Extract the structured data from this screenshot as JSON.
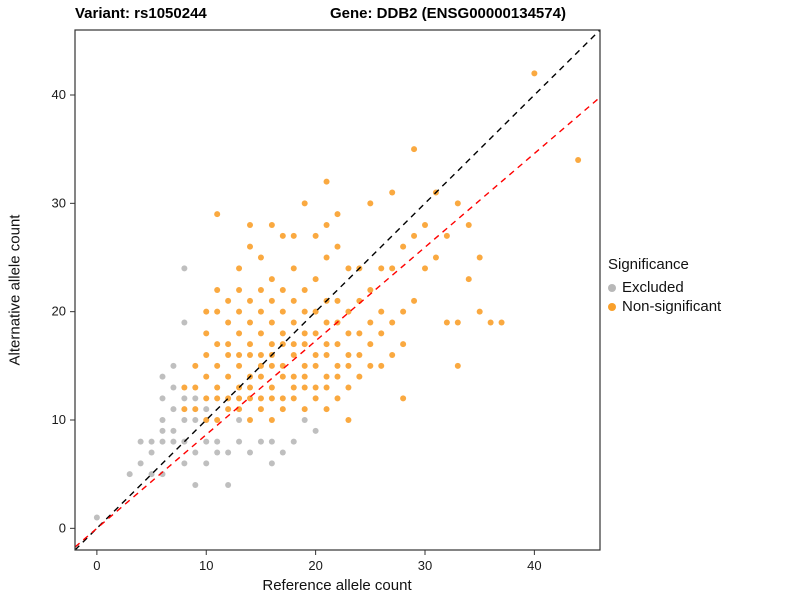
{
  "header": {
    "variant_title": "Variant: rs1050244",
    "gene_title": "Gene: DDB2 (ENSG00000134574)"
  },
  "legend": {
    "title": "Significance",
    "items": [
      {
        "label": "Excluded",
        "color": "#B8B8B8"
      },
      {
        "label": "Non-significant",
        "color": "#F9A02B"
      }
    ]
  },
  "colors": {
    "excluded": "#B8B8B8",
    "non_significant": "#F9A02B",
    "identity_line": "#000000",
    "fitted_line": "#FF0000",
    "panel_border": "#333333"
  },
  "chart_data": {
    "type": "scatter",
    "title": "Variant: rs1050244  Gene: DDB2 (ENSG00000134574)",
    "xlabel": "Reference allele count",
    "ylabel": "Alternative allele count",
    "xlim": [
      -2,
      46
    ],
    "ylim": [
      -2,
      46
    ],
    "x_ticks": [
      0,
      10,
      20,
      30,
      40
    ],
    "y_ticks": [
      0,
      10,
      20,
      30,
      40
    ],
    "grid": false,
    "legend_position": "right",
    "lines": [
      {
        "name": "identity",
        "slope": 1.0,
        "intercept": 0,
        "color": "#000000",
        "dashed": true
      },
      {
        "name": "fitted",
        "slope": 0.865,
        "intercept": 0,
        "color": "#FF0000",
        "dashed": true
      }
    ],
    "series": [
      {
        "name": "Excluded",
        "color": "#B8B8B8",
        "points": [
          [
            0,
            1
          ],
          [
            3,
            5
          ],
          [
            4,
            6
          ],
          [
            4,
            8
          ],
          [
            5,
            5
          ],
          [
            5,
            7
          ],
          [
            5,
            8
          ],
          [
            6,
            5
          ],
          [
            6,
            8
          ],
          [
            6,
            9
          ],
          [
            6,
            10
          ],
          [
            6,
            12
          ],
          [
            6,
            14
          ],
          [
            7,
            8
          ],
          [
            7,
            9
          ],
          [
            7,
            11
          ],
          [
            7,
            13
          ],
          [
            7,
            15
          ],
          [
            8,
            6
          ],
          [
            8,
            8
          ],
          [
            8,
            10
          ],
          [
            8,
            12
          ],
          [
            8,
            19
          ],
          [
            8,
            24
          ],
          [
            9,
            4
          ],
          [
            9,
            7
          ],
          [
            9,
            10
          ],
          [
            9,
            12
          ],
          [
            10,
            6
          ],
          [
            10,
            8
          ],
          [
            10,
            11
          ],
          [
            11,
            7
          ],
          [
            11,
            8
          ],
          [
            12,
            4
          ],
          [
            12,
            7
          ],
          [
            13,
            8
          ],
          [
            13,
            10
          ],
          [
            14,
            7
          ],
          [
            15,
            8
          ],
          [
            16,
            6
          ],
          [
            16,
            8
          ],
          [
            17,
            7
          ],
          [
            18,
            8
          ],
          [
            19,
            10
          ],
          [
            20,
            9
          ]
        ]
      },
      {
        "name": "Non-significant",
        "color": "#F9A02B",
        "points": [
          [
            8,
            11
          ],
          [
            8,
            13
          ],
          [
            9,
            11
          ],
          [
            9,
            13
          ],
          [
            9,
            15
          ],
          [
            10,
            10
          ],
          [
            10,
            12
          ],
          [
            10,
            14
          ],
          [
            10,
            16
          ],
          [
            10,
            18
          ],
          [
            10,
            20
          ],
          [
            11,
            10
          ],
          [
            11,
            12
          ],
          [
            11,
            13
          ],
          [
            11,
            15
          ],
          [
            11,
            17
          ],
          [
            11,
            20
          ],
          [
            11,
            22
          ],
          [
            11,
            29
          ],
          [
            12,
            11
          ],
          [
            12,
            12
          ],
          [
            12,
            14
          ],
          [
            12,
            16
          ],
          [
            12,
            17
          ],
          [
            12,
            19
          ],
          [
            12,
            21
          ],
          [
            13,
            11
          ],
          [
            13,
            12
          ],
          [
            13,
            13
          ],
          [
            13,
            15
          ],
          [
            13,
            16
          ],
          [
            13,
            18
          ],
          [
            13,
            20
          ],
          [
            13,
            22
          ],
          [
            13,
            24
          ],
          [
            14,
            10
          ],
          [
            14,
            12
          ],
          [
            14,
            13
          ],
          [
            14,
            14
          ],
          [
            14,
            16
          ],
          [
            14,
            17
          ],
          [
            14,
            19
          ],
          [
            14,
            21
          ],
          [
            14,
            26
          ],
          [
            14,
            28
          ],
          [
            15,
            11
          ],
          [
            15,
            12
          ],
          [
            15,
            14
          ],
          [
            15,
            15
          ],
          [
            15,
            16
          ],
          [
            15,
            18
          ],
          [
            15,
            20
          ],
          [
            15,
            22
          ],
          [
            15,
            25
          ],
          [
            16,
            10
          ],
          [
            16,
            12
          ],
          [
            16,
            13
          ],
          [
            16,
            15
          ],
          [
            16,
            16
          ],
          [
            16,
            17
          ],
          [
            16,
            19
          ],
          [
            16,
            21
          ],
          [
            16,
            23
          ],
          [
            16,
            28
          ],
          [
            17,
            11
          ],
          [
            17,
            12
          ],
          [
            17,
            14
          ],
          [
            17,
            15
          ],
          [
            17,
            17
          ],
          [
            17,
            18
          ],
          [
            17,
            20
          ],
          [
            17,
            22
          ],
          [
            17,
            27
          ],
          [
            18,
            12
          ],
          [
            18,
            13
          ],
          [
            18,
            14
          ],
          [
            18,
            16
          ],
          [
            18,
            17
          ],
          [
            18,
            19
          ],
          [
            18,
            21
          ],
          [
            18,
            24
          ],
          [
            18,
            27
          ],
          [
            19,
            11
          ],
          [
            19,
            13
          ],
          [
            19,
            14
          ],
          [
            19,
            15
          ],
          [
            19,
            17
          ],
          [
            19,
            18
          ],
          [
            19,
            20
          ],
          [
            19,
            22
          ],
          [
            19,
            30
          ],
          [
            20,
            12
          ],
          [
            20,
            13
          ],
          [
            20,
            15
          ],
          [
            20,
            16
          ],
          [
            20,
            18
          ],
          [
            20,
            20
          ],
          [
            20,
            23
          ],
          [
            20,
            27
          ],
          [
            21,
            11
          ],
          [
            21,
            13
          ],
          [
            21,
            14
          ],
          [
            21,
            16
          ],
          [
            21,
            17
          ],
          [
            21,
            19
          ],
          [
            21,
            21
          ],
          [
            21,
            25
          ],
          [
            21,
            28
          ],
          [
            21,
            32
          ],
          [
            22,
            12
          ],
          [
            22,
            14
          ],
          [
            22,
            15
          ],
          [
            22,
            17
          ],
          [
            22,
            19
          ],
          [
            22,
            21
          ],
          [
            22,
            26
          ],
          [
            22,
            29
          ],
          [
            23,
            10
          ],
          [
            23,
            13
          ],
          [
            23,
            15
          ],
          [
            23,
            16
          ],
          [
            23,
            18
          ],
          [
            23,
            20
          ],
          [
            23,
            24
          ],
          [
            24,
            14
          ],
          [
            24,
            16
          ],
          [
            24,
            18
          ],
          [
            24,
            21
          ],
          [
            24,
            24
          ],
          [
            25,
            15
          ],
          [
            25,
            17
          ],
          [
            25,
            19
          ],
          [
            25,
            22
          ],
          [
            25,
            30
          ],
          [
            26,
            15
          ],
          [
            26,
            18
          ],
          [
            26,
            20
          ],
          [
            26,
            24
          ],
          [
            27,
            16
          ],
          [
            27,
            19
          ],
          [
            27,
            24
          ],
          [
            27,
            31
          ],
          [
            28,
            12
          ],
          [
            28,
            17
          ],
          [
            28,
            20
          ],
          [
            28,
            26
          ],
          [
            29,
            21
          ],
          [
            29,
            27
          ],
          [
            29,
            35
          ],
          [
            30,
            24
          ],
          [
            30,
            28
          ],
          [
            31,
            25
          ],
          [
            31,
            31
          ],
          [
            32,
            19
          ],
          [
            32,
            27
          ],
          [
            33,
            15
          ],
          [
            33,
            19
          ],
          [
            33,
            30
          ],
          [
            34,
            23
          ],
          [
            34,
            28
          ],
          [
            35,
            20
          ],
          [
            35,
            25
          ],
          [
            36,
            19
          ],
          [
            37,
            19
          ],
          [
            40,
            42
          ],
          [
            44,
            34
          ]
        ]
      }
    ]
  }
}
